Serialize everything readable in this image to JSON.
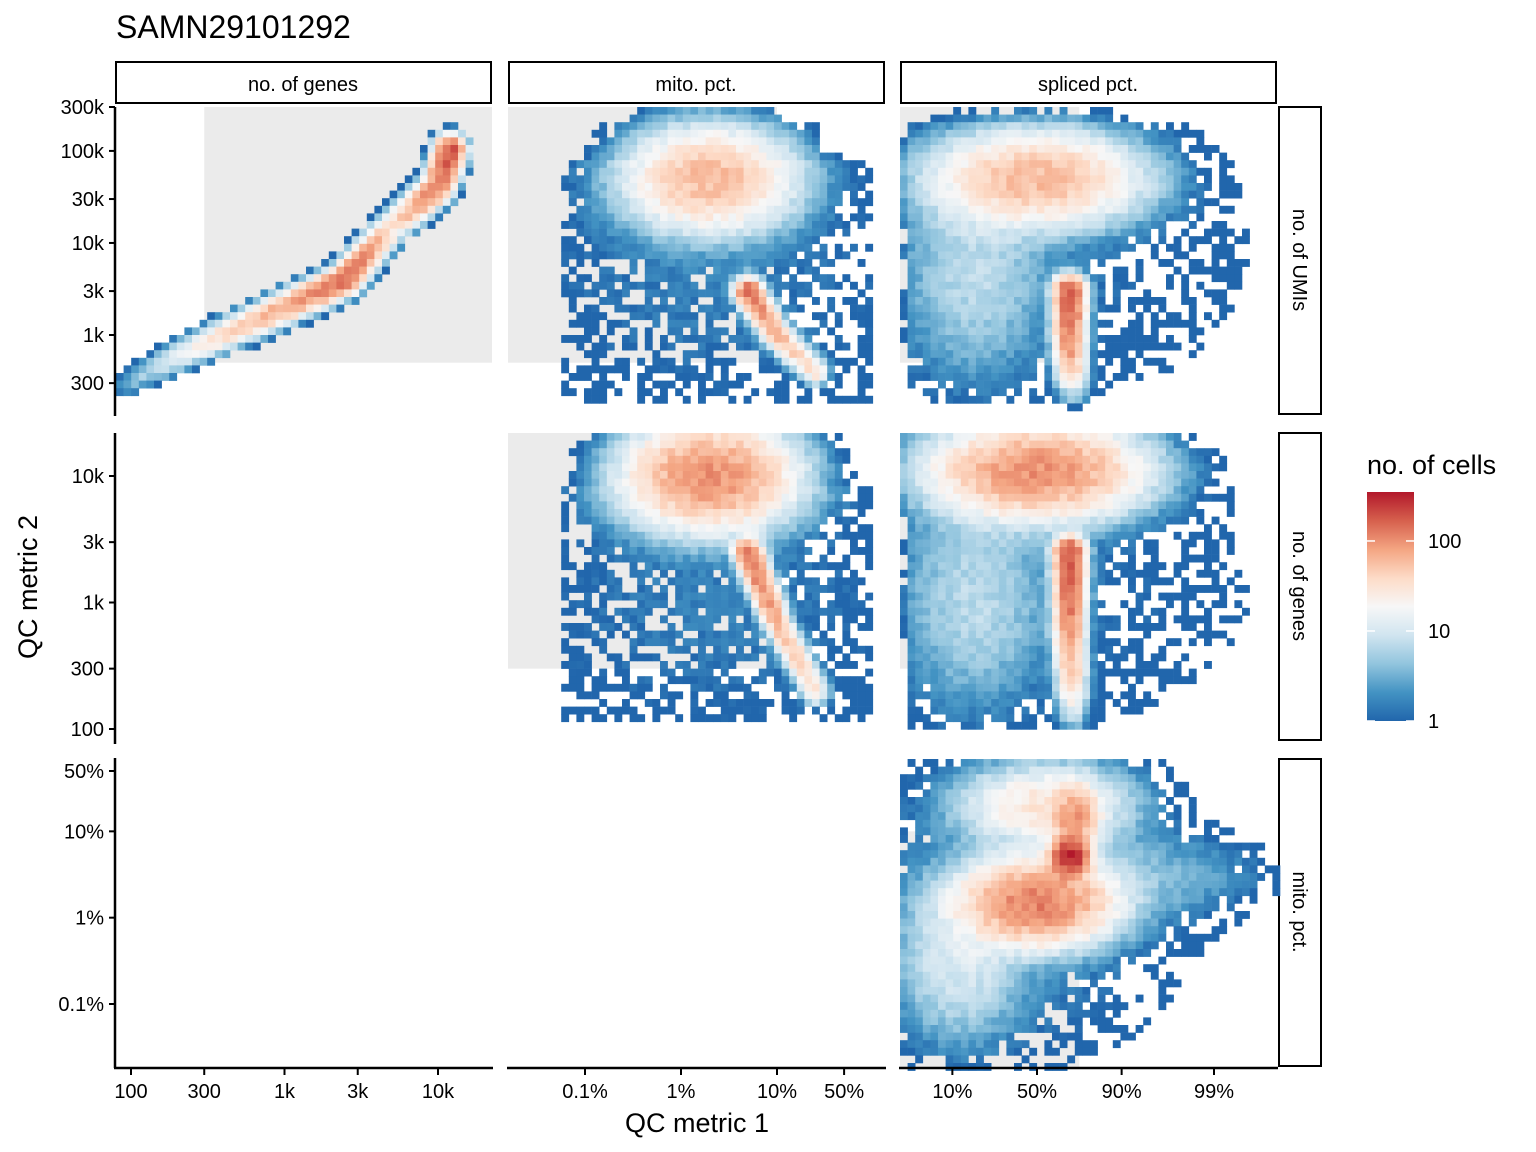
{
  "chart_data": {
    "type": "heatmap",
    "title": "SAMN29101292",
    "xlabel": "QC metric 1",
    "ylabel": "QC metric 2",
    "column_strips": [
      "no. of genes",
      "mito. pct.",
      "spliced pct."
    ],
    "row_strips": [
      "no. of UMIs",
      "no. of genes",
      "mito. pct."
    ],
    "x_ticks": [
      [
        "100",
        "300",
        "1k",
        "3k",
        "10k"
      ],
      [
        "0.1%",
        "1%",
        "10%",
        "50%"
      ],
      [
        "10%",
        "50%",
        "90%",
        "99%"
      ]
    ],
    "y_ticks": [
      [
        "300k",
        "100k",
        "30k",
        "10k",
        "3k",
        "1k",
        "300"
      ],
      [
        "10k",
        "3k",
        "1k",
        "300",
        "100"
      ],
      [
        "50%",
        "10%",
        "1%",
        "0.1%"
      ]
    ],
    "legend": {
      "title": "no. of cells",
      "scale": "log",
      "ticks": [
        "100",
        "10",
        "1"
      ],
      "colors": [
        "#2166ac",
        "#4393c3",
        "#92c5de",
        "#d1e5f0",
        "#f7f7f7",
        "#fddbc7",
        "#f4a582",
        "#d6604d",
        "#b2182b"
      ],
      "placement": "right"
    },
    "pass_region_color": "#ebebeb",
    "panels": [
      {
        "row": "no. of UMIs",
        "col": "no. of genes",
        "pass_region": {
          "x_range": [
            "300",
            "max"
          ],
          "y_range": [
            "500",
            "max"
          ]
        },
        "clusters": [
          {
            "name": "diagonal",
            "path": [
              [
                80,
                250,
                1
              ],
              [
                150,
                450,
                8
              ],
              [
                300,
                800,
                25
              ],
              [
                700,
                1500,
                60
              ],
              [
                1500,
                2700,
                100
              ],
              [
                2500,
                4000,
                150
              ],
              [
                5000,
                15000,
                30
              ],
              [
                10000,
                40000,
                120
              ],
              [
                12000,
                100000,
                200
              ]
            ]
          }
        ]
      },
      {
        "row": "no. of UMIs",
        "col": "mito. pct.",
        "pass_region": {
          "x_range": [
            "min",
            "10%"
          ],
          "y_range": [
            "500",
            "max"
          ]
        },
        "clusters": [
          {
            "name": "top-blob",
            "center": [
              "2%",
              50000
            ],
            "count_peak": 60
          },
          {
            "name": "streak",
            "path": [
              [
                "5%",
                3000,
                150
              ],
              [
                "10%",
                1000,
                60
              ],
              [
                "25%",
                400,
                30
              ]
            ]
          },
          {
            "name": "scatter",
            "count_peak": 1
          }
        ]
      },
      {
        "row": "no. of UMIs",
        "col": "spliced pct.",
        "pass_region": {
          "x_range": [
            "min",
            "75%"
          ],
          "y_range": [
            "500",
            "max"
          ]
        },
        "clusters": [
          {
            "name": "top-blob",
            "center": [
              "50%",
              50000
            ],
            "count_peak": 60
          },
          {
            "name": "streak",
            "path": [
              [
                "70%",
                3000,
                200
              ],
              [
                "70%",
                600,
                80
              ]
            ]
          },
          {
            "name": "scatter",
            "count_peak": 1
          }
        ]
      },
      {
        "row": "no. of genes",
        "col": "mito. pct.",
        "pass_region": {
          "x_range": [
            "min",
            "10%"
          ],
          "y_range": [
            "300",
            "max"
          ]
        },
        "clusters": [
          {
            "name": "top-blob",
            "center": [
              "2%",
              10000
            ],
            "count_peak": 100
          },
          {
            "name": "streak",
            "path": [
              [
                "5%",
                2500,
                150
              ],
              [
                "10%",
                700,
                60
              ],
              [
                "25%",
                200,
                30
              ]
            ]
          },
          {
            "name": "scatter",
            "count_peak": 1
          }
        ]
      },
      {
        "row": "no. of genes",
        "col": "spliced pct.",
        "pass_region": {
          "x_range": [
            "min",
            "75%"
          ],
          "y_range": [
            "300",
            "max"
          ]
        },
        "clusters": [
          {
            "name": "top-blob",
            "center": [
              "50%",
              11000
            ],
            "count_peak": 100
          },
          {
            "name": "streak",
            "path": [
              [
                "70%",
                2500,
                200
              ],
              [
                "70%",
                500,
                80
              ]
            ]
          },
          {
            "name": "scatter",
            "count_peak": 1
          }
        ]
      },
      {
        "row": "mito. pct.",
        "col": "spliced pct.",
        "pass_region": {
          "x_range": [
            "min",
            "75%"
          ],
          "y_range": [
            "min",
            "10%"
          ]
        },
        "clusters": [
          {
            "name": "main-blob",
            "center": [
              "50%",
              "1.5%"
            ],
            "count_peak": 120
          },
          {
            "name": "hotspot",
            "center": [
              "70%",
              "5%"
            ],
            "count_peak": 300
          },
          {
            "name": "upper-band",
            "center": [
              "55%",
              "20%"
            ],
            "count_peak": 30
          },
          {
            "name": "right-tail",
            "center": [
              "95%",
              "3%"
            ],
            "count_peak": 3
          }
        ]
      }
    ]
  }
}
